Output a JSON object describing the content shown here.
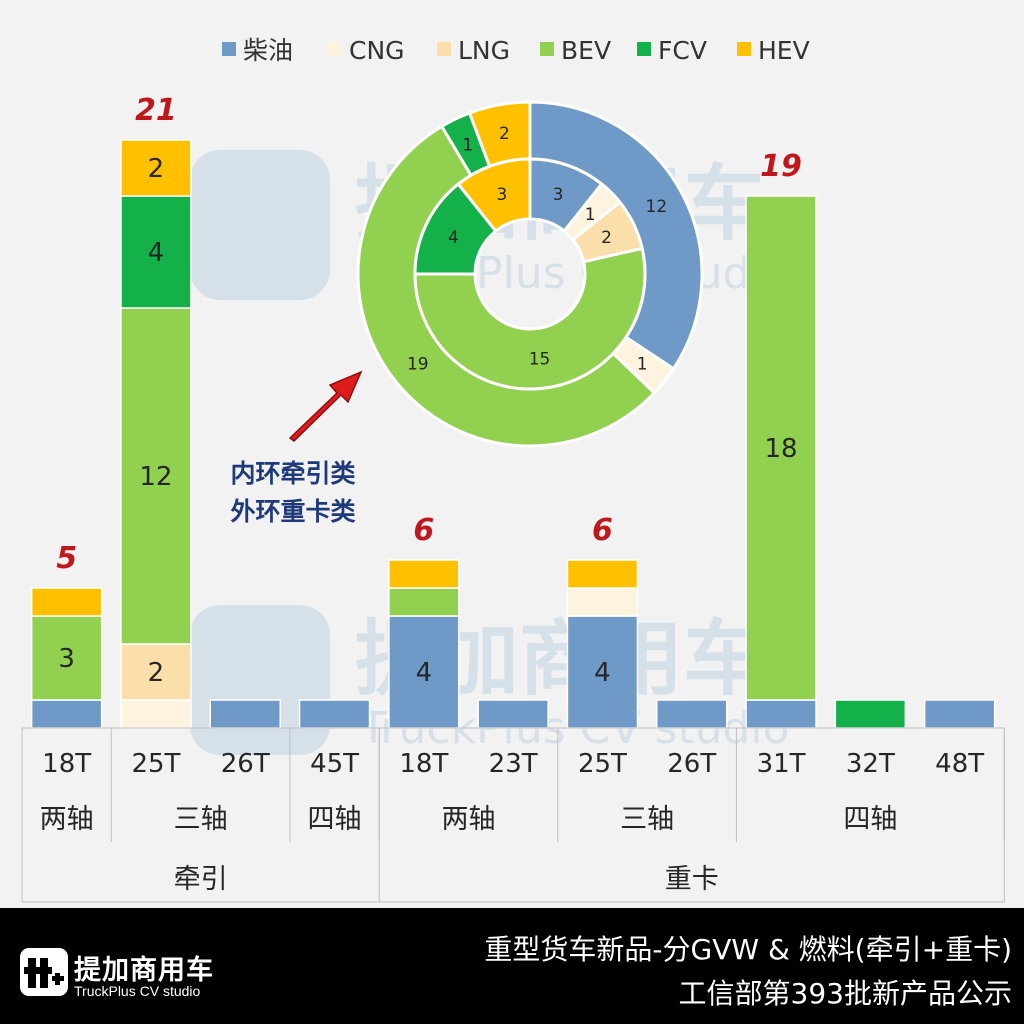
{
  "colors": {
    "diesel": "#6f9ac8",
    "cng": "#fdf3de",
    "lng": "#fbdfaa",
    "bev": "#92d050",
    "fcv": "#14b04a",
    "hev": "#ffc000",
    "total_label": "#c0171d",
    "annotation": "#1f3a7a",
    "arrow": "#e01b1b",
    "grid_line": "#bfbfbf"
  },
  "legend": [
    {
      "key": "diesel",
      "label": "柴油"
    },
    {
      "key": "cng",
      "label": "CNG"
    },
    {
      "key": "lng",
      "label": "LNG"
    },
    {
      "key": "bev",
      "label": "BEV"
    },
    {
      "key": "fcv",
      "label": "FCV"
    },
    {
      "key": "hev",
      "label": "HEV"
    }
  ],
  "chart_data": [
    {
      "type": "bar",
      "stacked": true,
      "categories": [
        "18T",
        "25T",
        "26T",
        "45T",
        "18T",
        "23T",
        "25T",
        "26T",
        "31T",
        "32T",
        "48T"
      ],
      "axle_groups": [
        {
          "label": "两轴",
          "span": 1
        },
        {
          "label": "三轴",
          "span": 2
        },
        {
          "label": "四轴",
          "span": 1
        },
        {
          "label": "两轴",
          "span": 2
        },
        {
          "label": "三轴",
          "span": 2
        },
        {
          "label": "四轴",
          "span": 3
        }
      ],
      "type_groups": [
        {
          "label": "牵引",
          "span": 4
        },
        {
          "label": "重卡",
          "span": 7
        }
      ],
      "series": [
        {
          "key": "diesel",
          "name": "柴油",
          "values": [
            1,
            0,
            1,
            1,
            4,
            1,
            4,
            1,
            1,
            0,
            1
          ]
        },
        {
          "key": "cng",
          "name": "CNG",
          "values": [
            0,
            1,
            0,
            0,
            0,
            0,
            1,
            0,
            0,
            0,
            0
          ]
        },
        {
          "key": "lng",
          "name": "LNG",
          "values": [
            0,
            2,
            0,
            0,
            0,
            0,
            0,
            0,
            0,
            0,
            0
          ]
        },
        {
          "key": "bev",
          "name": "BEV",
          "values": [
            3,
            12,
            0,
            0,
            1,
            0,
            0,
            0,
            18,
            0,
            0
          ]
        },
        {
          "key": "fcv",
          "name": "FCV",
          "values": [
            0,
            4,
            0,
            0,
            0,
            0,
            0,
            0,
            0,
            1,
            0
          ]
        },
        {
          "key": "hev",
          "name": "HEV",
          "values": [
            1,
            2,
            0,
            0,
            1,
            0,
            1,
            0,
            0,
            0,
            0
          ]
        }
      ],
      "segment_labels": [
        {
          "bar": 0,
          "key": "bev",
          "text": "3"
        },
        {
          "bar": 1,
          "key": "lng",
          "text": "2"
        },
        {
          "bar": 1,
          "key": "bev",
          "text": "12"
        },
        {
          "bar": 1,
          "key": "fcv",
          "text": "4"
        },
        {
          "bar": 1,
          "key": "hev",
          "text": "2"
        },
        {
          "bar": 4,
          "key": "diesel",
          "text": "4"
        },
        {
          "bar": 6,
          "key": "diesel",
          "text": "4"
        },
        {
          "bar": 8,
          "key": "bev",
          "text": "18"
        }
      ],
      "total_labels": [
        {
          "bar": 0,
          "text": "5"
        },
        {
          "bar": 1,
          "text": "21"
        },
        {
          "bar": 4,
          "text": "6"
        },
        {
          "bar": 6,
          "text": "6"
        },
        {
          "bar": 8,
          "text": "19"
        }
      ]
    },
    {
      "type": "pie",
      "variant": "double-donut",
      "inner_ring": {
        "name": "牵引",
        "slices": [
          {
            "key": "diesel",
            "value": 3
          },
          {
            "key": "cng",
            "value": 1
          },
          {
            "key": "lng",
            "value": 2
          },
          {
            "key": "bev",
            "value": 15
          },
          {
            "key": "fcv",
            "value": 4
          },
          {
            "key": "hev",
            "value": 3
          }
        ]
      },
      "outer_ring": {
        "name": "重卡",
        "slices": [
          {
            "key": "diesel",
            "value": 12
          },
          {
            "key": "cng",
            "value": 1
          },
          {
            "key": "lng",
            "value": 0
          },
          {
            "key": "bev",
            "value": 19
          },
          {
            "key": "fcv",
            "value": 1
          },
          {
            "key": "hev",
            "value": 2
          }
        ]
      }
    }
  ],
  "annotation": {
    "line1": "内环牵引类",
    "line2": "外环重卡类"
  },
  "watermark": {
    "cn": "提加商用车",
    "en": "TruckPlus CV studio"
  },
  "footer": {
    "logo_cn": "提加商用车",
    "logo_en": "TruckPlus CV studio",
    "title_line1": "重型货车新品-分GVW & 燃料(牵引+重卡)",
    "title_line2": "工信部第393批新产品公示"
  }
}
